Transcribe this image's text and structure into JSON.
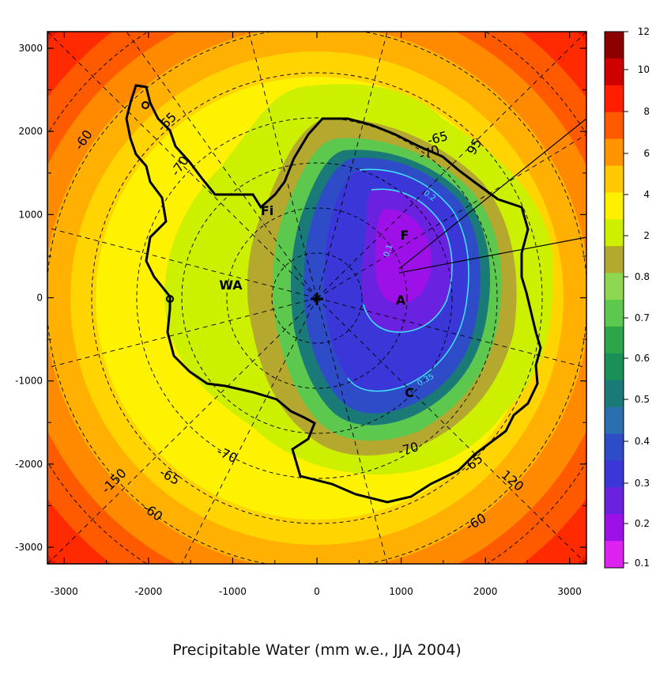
{
  "chart_data": {
    "type": "contour-map",
    "title": "Precipitable Water (mm w.e., JJA 2004)",
    "x_axis": {
      "ticks": [
        "-3000",
        "-2000",
        "-1000",
        "0",
        "1000",
        "2000",
        "3000"
      ],
      "range": [
        -3200,
        3200
      ]
    },
    "y_axis": {
      "ticks": [
        "3000",
        "2000",
        "1000",
        "0",
        "-1000",
        "-2000",
        "-3000"
      ],
      "range": [
        -3200,
        3200
      ]
    },
    "colorbar": {
      "levels": [
        "12",
        "10",
        "8",
        "6",
        "4",
        "2",
        "0.8",
        "0.7",
        "0.6",
        "0.5",
        "0.4",
        "0.3",
        "0.2",
        "0.1"
      ],
      "colors": [
        "#8c0000",
        "#cf0000",
        "#ff1e00",
        "#ff5a00",
        "#ff9400",
        "#ffc800",
        "#fff000",
        "#cdf000",
        "#b5a82f",
        "#8dd850",
        "#5cc84e",
        "#2da64a",
        "#1a8f57",
        "#197a78",
        "#2a6fb0",
        "#2e4cc8",
        "#3b36d8",
        "#6a22e0",
        "#9e10e8",
        "#dd22f0"
      ]
    },
    "contour_labels": [
      "0.1",
      "0.2",
      "0.35"
    ],
    "latitude_labels": [
      "-60",
      "-65",
      "-70",
      "-70",
      "-60",
      "-65",
      "-70",
      "-65",
      "-60",
      "-65",
      "-70"
    ],
    "longitude_labels": [
      "-150",
      "120",
      "95"
    ],
    "station_labels": [
      "Fi",
      "WA",
      "F",
      "A",
      "C"
    ],
    "pole_marker": "+"
  }
}
